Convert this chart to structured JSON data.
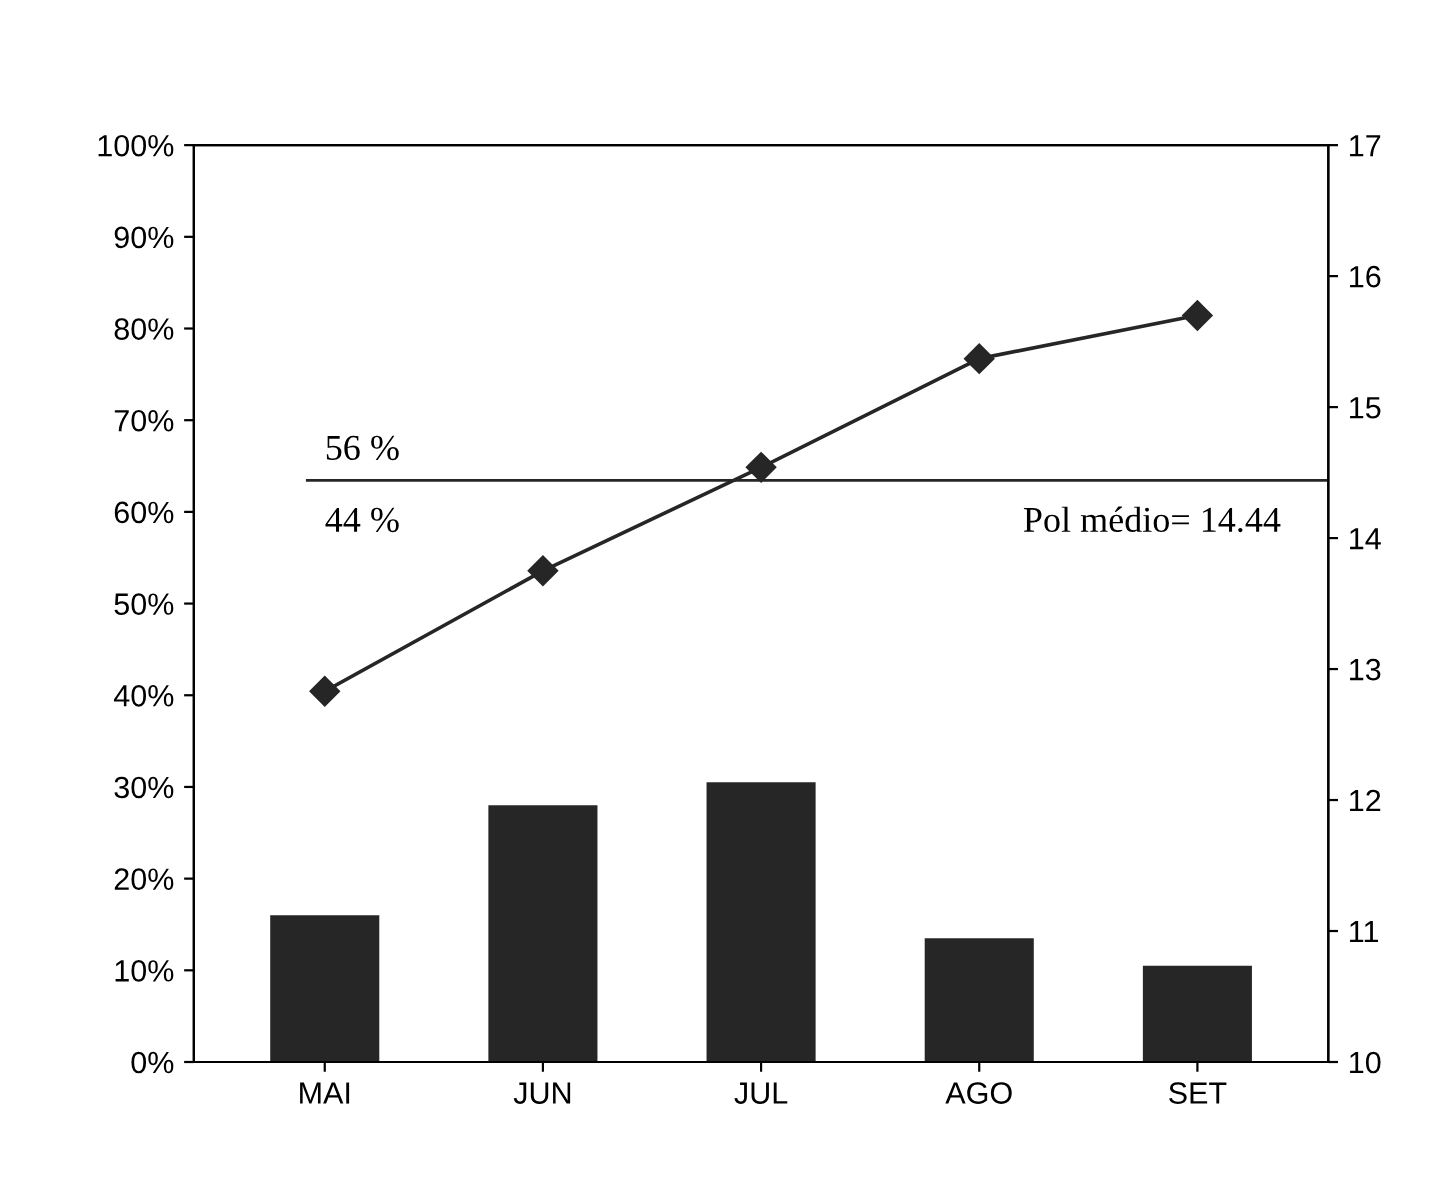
{
  "chart_data": {
    "type": "bar",
    "categories": [
      "MAI",
      "JUN",
      "JUL",
      "AGO",
      "SET"
    ],
    "series": [
      {
        "color": "#262626",
        "values": [
          16,
          28,
          30.5,
          13.5,
          10.5
        ]
      },
      {
        "type": "line",
        "axis": "y2",
        "color": "#262626",
        "values": [
          12.83,
          13.75,
          14.54,
          15.37,
          15.7
        ],
        "marker": "diamond"
      }
    ],
    "ylim": [
      0,
      100
    ],
    "yticks": [
      {
        "value": 0,
        "label": "0%"
      },
      {
        "value": 10,
        "label": "10%"
      },
      {
        "value": 20,
        "label": "20%"
      },
      {
        "value": 30,
        "label": "30%"
      },
      {
        "value": 40,
        "label": "40%"
      },
      {
        "value": 50,
        "label": "50%"
      },
      {
        "value": 60,
        "label": "60%"
      },
      {
        "value": 70,
        "label": "70%"
      },
      {
        "value": 80,
        "label": "80%"
      },
      {
        "value": 90,
        "label": "90%"
      },
      {
        "value": 100,
        "label": "100%"
      }
    ],
    "y2lim": [
      10,
      17
    ],
    "y2ticks": [
      10,
      11,
      12,
      13,
      14,
      15,
      16,
      17
    ],
    "ref_lines": [
      {
        "axis": "y2",
        "value": 14.44,
        "label": "Pol médio= 14.44",
        "color": "#262626"
      }
    ],
    "annotations": [
      "56 %",
      "44 %"
    ],
    "grid": false,
    "legend": false
  }
}
